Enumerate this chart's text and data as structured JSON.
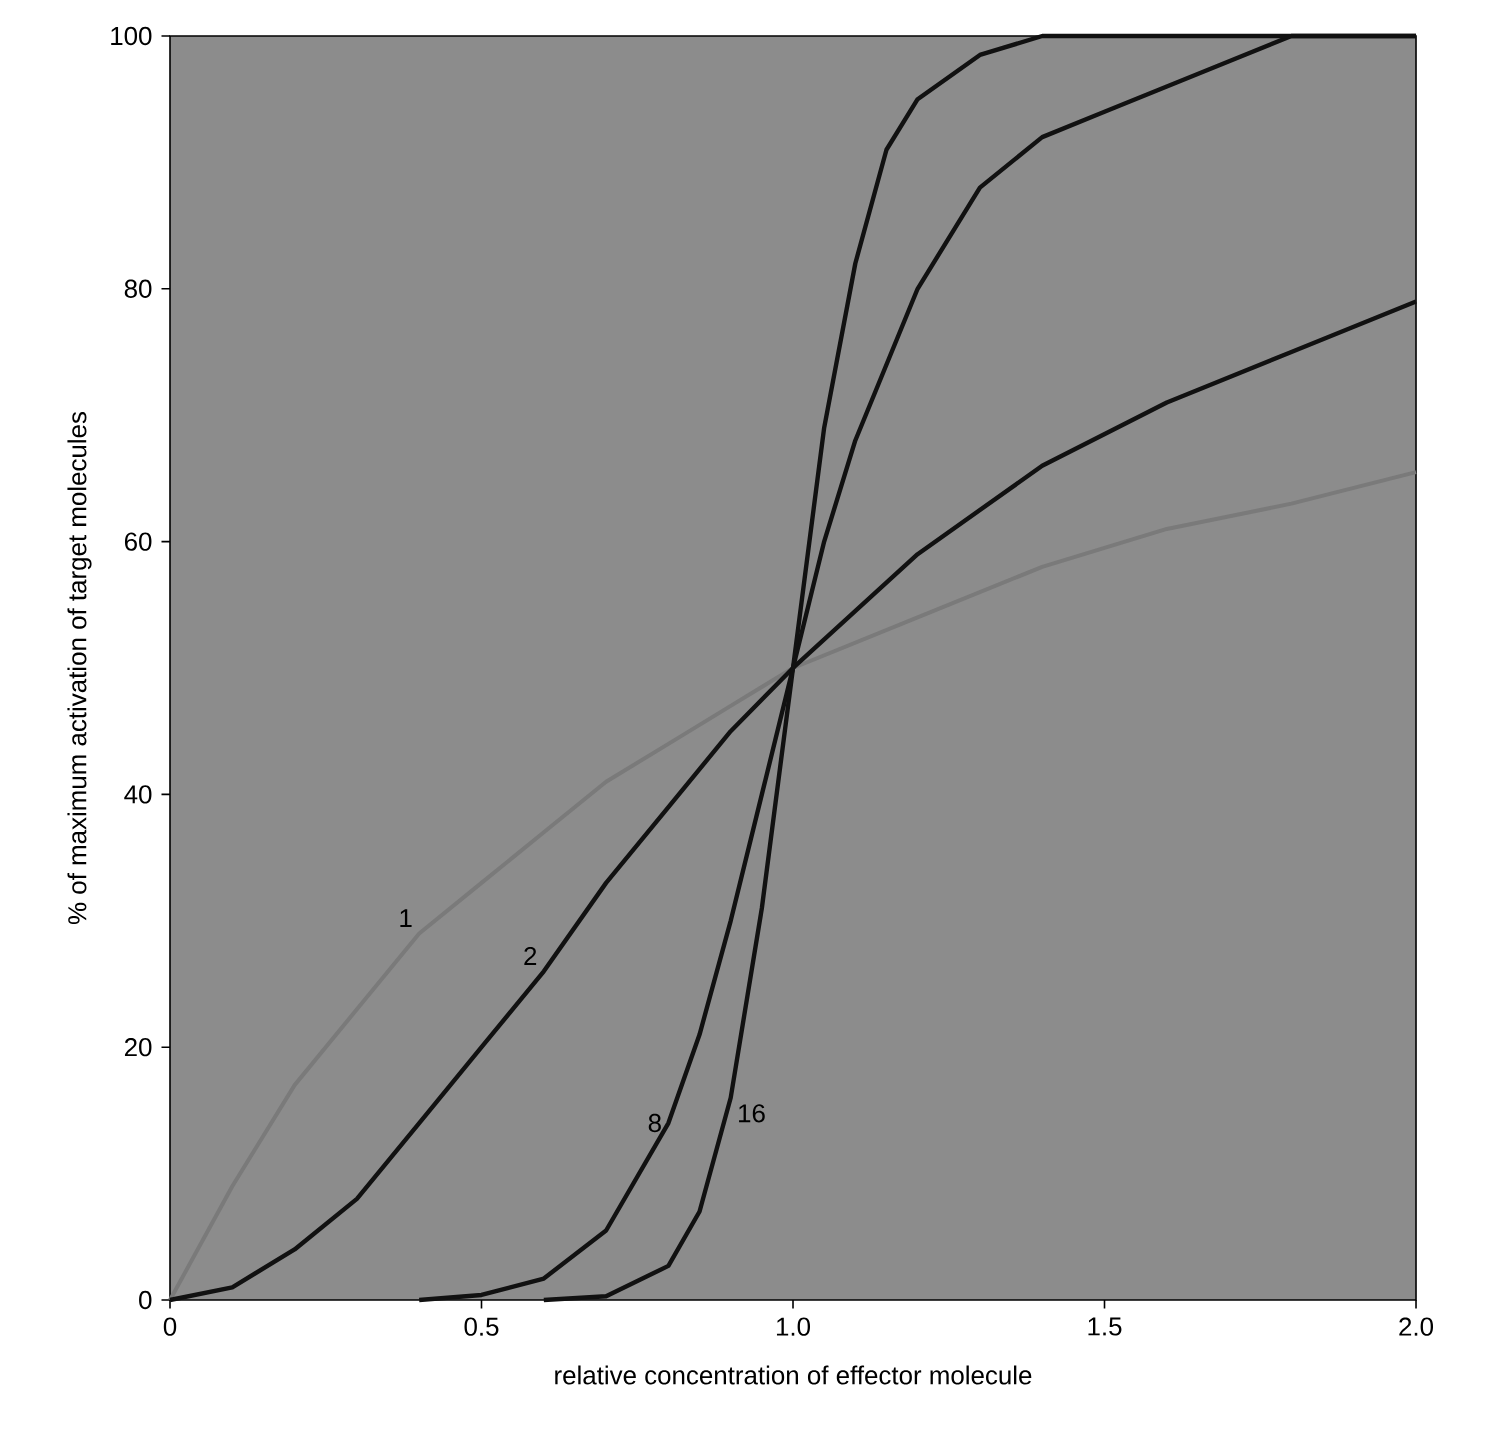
{
  "chart_data": {
    "type": "line",
    "xlabel": "relative concentration of effector molecule",
    "ylabel": "% of maximum activation of target molecules",
    "xlim": [
      0,
      2.0
    ],
    "ylim": [
      0,
      100
    ],
    "xticks": [
      0,
      0.5,
      {
        "value": 1.0,
        "label": "1.0"
      },
      1.5,
      {
        "value": 2.0,
        "label": "2.0"
      }
    ],
    "yticks": [
      0,
      20,
      40,
      60,
      80,
      100
    ],
    "grid": false,
    "legend": false,
    "marker": "none",
    "series": [
      {
        "name": "1",
        "color": "#7a7a7a",
        "x": [
          0,
          0.1,
          0.2,
          0.3,
          0.4,
          0.5,
          0.6,
          0.7,
          0.8,
          0.9,
          1.0,
          1.2,
          1.4,
          1.6,
          1.8,
          2.0
        ],
        "values": [
          0,
          9,
          17,
          23,
          29,
          33,
          37,
          41,
          44,
          47,
          50,
          54,
          58,
          61,
          63,
          65.5
        ]
      },
      {
        "name": "2",
        "color": "#111111",
        "x": [
          0,
          0.1,
          0.2,
          0.3,
          0.4,
          0.5,
          0.6,
          0.7,
          0.8,
          0.9,
          1.0,
          1.2,
          1.4,
          1.6,
          1.8,
          2.0
        ],
        "values": [
          0,
          1,
          4,
          8,
          14,
          20,
          26,
          33,
          39,
          45,
          50,
          59,
          66,
          71,
          75,
          79
        ]
      },
      {
        "name": "8",
        "color": "#111111",
        "x": [
          0.4,
          0.5,
          0.6,
          0.7,
          0.8,
          0.85,
          0.9,
          0.95,
          1.0,
          1.05,
          1.1,
          1.2,
          1.3,
          1.4,
          1.5,
          1.6,
          1.7,
          1.8,
          2.0
        ],
        "values": [
          0,
          0.4,
          1.7,
          5.5,
          14,
          21,
          30,
          40,
          50,
          60,
          68,
          80,
          88,
          92,
          94,
          96,
          98,
          100,
          100
        ]
      },
      {
        "name": "16",
        "color": "#111111",
        "x": [
          0.6,
          0.7,
          0.8,
          0.85,
          0.9,
          0.95,
          1.0,
          1.05,
          1.1,
          1.15,
          1.2,
          1.3,
          1.4,
          2.0
        ],
        "values": [
          0,
          0.3,
          2.7,
          7,
          16,
          31,
          50,
          69,
          82,
          91,
          95,
          98.5,
          100,
          100
        ]
      }
    ]
  }
}
